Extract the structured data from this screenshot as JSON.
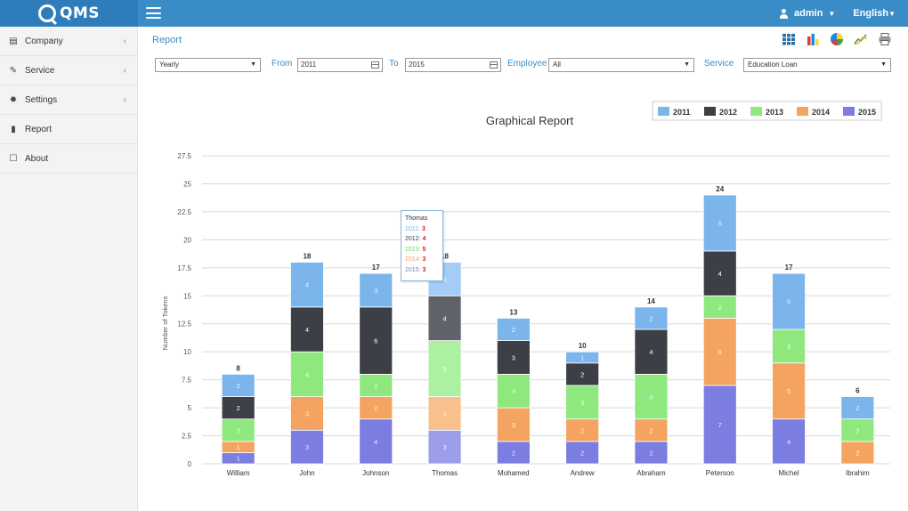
{
  "app": {
    "logo_text": "QMS"
  },
  "header": {
    "user": "admin",
    "language": "English"
  },
  "sidebar": {
    "items": [
      {
        "label": "Company",
        "icon": "building-icon",
        "has_submenu": true
      },
      {
        "label": "Service",
        "icon": "wrench-icon",
        "has_submenu": true
      },
      {
        "label": "Settings",
        "icon": "gear-icon",
        "has_submenu": true
      },
      {
        "label": "Report",
        "icon": "document-icon",
        "has_submenu": false
      },
      {
        "label": "About",
        "icon": "edit-icon",
        "has_submenu": false
      }
    ]
  },
  "main": {
    "breadcrumb": "Report",
    "toolbar": {
      "icons": [
        "grid-icon",
        "bar-chart-icon",
        "pie-chart-icon",
        "line-chart-icon",
        "print-icon"
      ]
    }
  },
  "filters": {
    "period": "Yearly",
    "from_label": "From",
    "from_value": "2011",
    "to_label": "To",
    "to_value": "2015",
    "employee_label": "Employee",
    "employee_value": "All",
    "service_label": "Service",
    "service_value": "Education Loan"
  },
  "tooltip": {
    "title": "Thomas",
    "rows": [
      {
        "year": "2011",
        "value": "3"
      },
      {
        "year": "2012",
        "value": "4"
      },
      {
        "year": "2013",
        "value": "5"
      },
      {
        "year": "2014",
        "value": "3"
      },
      {
        "year": "2015",
        "value": "3"
      }
    ]
  },
  "chart_data": {
    "type": "bar",
    "stacked": true,
    "title": "Graphical Report",
    "xlabel": "",
    "ylabel": "Number of Tokens",
    "ylim": [
      0,
      27.5
    ],
    "yticks": [
      "0",
      "2.5",
      "5",
      "7.5",
      "10",
      "12.5",
      "15",
      "17.5",
      "20",
      "22.5",
      "25",
      "27.5"
    ],
    "grid": true,
    "legend_position": "top-right",
    "categories": [
      "William",
      "John",
      "Johnson",
      "Thomas",
      "Mohamed",
      "Andrew",
      "Abraham",
      "Peterson",
      "Michel",
      "Ibrahim"
    ],
    "totals": [
      8,
      18,
      17,
      18,
      13,
      10,
      14,
      24,
      17,
      6
    ],
    "series": [
      {
        "name": "2015",
        "color": "#7b7de0",
        "values": [
          1,
          3,
          4,
          3,
          2,
          2,
          2,
          7,
          4,
          0
        ]
      },
      {
        "name": "2014",
        "color": "#f4a460",
        "values": [
          1,
          3,
          2,
          3,
          3,
          2,
          2,
          6,
          5,
          2
        ]
      },
      {
        "name": "2013",
        "color": "#8ee87e",
        "values": [
          2,
          4,
          2,
          5,
          3,
          3,
          4,
          2,
          3,
          2
        ]
      },
      {
        "name": "2012",
        "color": "#3c3f45",
        "values": [
          2,
          4,
          6,
          4,
          3,
          2,
          4,
          4,
          0,
          0
        ]
      },
      {
        "name": "2011",
        "color": "#7cb5ec",
        "values": [
          2,
          4,
          3,
          3,
          2,
          1,
          2,
          5,
          5,
          2
        ]
      }
    ],
    "legend_order": [
      "2011",
      "2012",
      "2013",
      "2014",
      "2015"
    ]
  }
}
